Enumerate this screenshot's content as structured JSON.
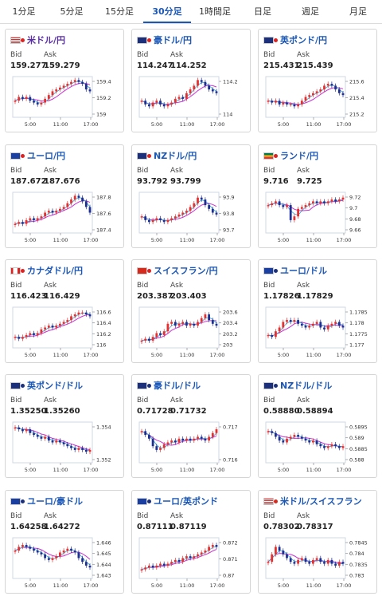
{
  "tabs": [
    "1分足",
    "5分足",
    "15分足",
    "30分足",
    "1時間足",
    "日足",
    "週足",
    "月足"
  ],
  "active_tab": 3,
  "cards": [
    {
      "title": "米ドル/円",
      "bid": "159.277",
      "ask": "159.279",
      "y_ticks": [
        "159.4",
        "159.2",
        "159"
      ],
      "x_ticks": [
        "5:00",
        "11:00",
        "17:00"
      ],
      "flag": "us-jp",
      "title_color": "purple",
      "chart_data": {
        "type": "line",
        "values": [
          4,
          5,
          4.5,
          5,
          4,
          3.5,
          3,
          3.5,
          4.5,
          5.5,
          6.5,
          7,
          7.5,
          8,
          8.5,
          9,
          9.5,
          9,
          8.5,
          7,
          6.5
        ]
      }
    },
    {
      "title": "豪ドル/円",
      "bid": "114.247",
      "ask": "114.252",
      "y_ticks": [
        "114.2",
        "114"
      ],
      "x_ticks": [
        "5:00",
        "11:00",
        "17:00"
      ],
      "flag": "au-jp",
      "chart_data": {
        "type": "line",
        "values": [
          4,
          3,
          2.5,
          3.5,
          4,
          3,
          2.5,
          3,
          3.5,
          4.5,
          5,
          4.5,
          6,
          7,
          8,
          9.5,
          9,
          8,
          7,
          6.5,
          6
        ]
      }
    },
    {
      "title": "英ポンド/円",
      "bid": "215.431",
      "ask": "215.439",
      "y_ticks": [
        "215.6",
        "215.4",
        "215.2"
      ],
      "x_ticks": [
        "5:00",
        "11:00",
        "17:00"
      ],
      "flag": "gb-jp",
      "chart_data": {
        "type": "line",
        "values": [
          4,
          3.5,
          4,
          3,
          3.5,
          3,
          3,
          2.5,
          3,
          4,
          5,
          5.5,
          6,
          6.5,
          7,
          8,
          8.5,
          8,
          7,
          6,
          5.5
        ]
      }
    },
    {
      "title": "ユーロ/円",
      "bid": "187.672",
      "ask": "187.676",
      "y_ticks": [
        "187.8",
        "187.6",
        "187.4"
      ],
      "x_ticks": [
        "5:00",
        "11:00",
        "17:00"
      ],
      "flag": "eu-jp",
      "chart_data": {
        "type": "line",
        "values": [
          2,
          2.5,
          2,
          3,
          3.5,
          3,
          3.5,
          4,
          5,
          5.5,
          5,
          5.5,
          6,
          6.5,
          7.5,
          8.5,
          9.5,
          9,
          8,
          6.5,
          5
        ]
      }
    },
    {
      "title": "NZドル/円",
      "bid": "93.792",
      "ask": "93.799",
      "y_ticks": [
        "93.9",
        "93.8",
        "93.7"
      ],
      "x_ticks": [
        "5:00",
        "11:00",
        "17:00"
      ],
      "flag": "nz-jp",
      "chart_data": {
        "type": "line",
        "values": [
          4,
          3,
          2.5,
          3,
          3.5,
          3,
          2.5,
          3,
          3.5,
          4,
          4.5,
          5,
          5.5,
          6.5,
          7.5,
          9,
          8.5,
          7,
          6,
          5,
          4.5
        ]
      }
    },
    {
      "title": "ランド/円",
      "bid": "9.716",
      "ask": "9.725",
      "y_ticks": [
        "9.72",
        "9.7",
        "9.68",
        "9.66"
      ],
      "x_ticks": [
        "5:00",
        "11:00",
        "17:00"
      ],
      "flag": "za-jp",
      "chart_data": {
        "type": "line",
        "values": [
          7,
          7.5,
          8,
          7,
          6.5,
          7,
          3,
          4,
          6,
          6.5,
          7,
          7.5,
          8,
          7.5,
          8,
          7.5,
          8,
          8.5,
          8,
          8.5,
          9
        ]
      }
    },
    {
      "title": "カナダドル/円",
      "bid": "116.423",
      "ask": "116.429",
      "y_ticks": [
        "116.6",
        "116.4",
        "116.2",
        "116"
      ],
      "x_ticks": [
        "5:00",
        "11:00",
        "17:00"
      ],
      "flag": "ca-jp",
      "chart_data": {
        "type": "line",
        "values": [
          2.5,
          2,
          2.5,
          3,
          3.5,
          3,
          3.5,
          4.5,
          5,
          5.5,
          5,
          5.5,
          6,
          6.5,
          7,
          8,
          8.5,
          9,
          9,
          8.5,
          8
        ]
      }
    },
    {
      "title": "スイスフラン/円",
      "bid": "203.387",
      "ask": "203.403",
      "y_ticks": [
        "203.6",
        "203.4",
        "203.2",
        "203"
      ],
      "x_ticks": [
        "5:00",
        "11:00",
        "17:00"
      ],
      "flag": "ch-jp",
      "chart_data": {
        "type": "line",
        "values": [
          1.5,
          2,
          1.5,
          2.5,
          3.5,
          3,
          4,
          6,
          6.5,
          5.5,
          6,
          6.5,
          5.5,
          6,
          5.5,
          6.5,
          7.5,
          8.5,
          7,
          6,
          5.5
        ]
      }
    },
    {
      "title": "ユーロ/ドル",
      "bid": "1.17826",
      "ask": "1.17829",
      "y_ticks": [
        "1.1785",
        "1.178",
        "1.1775",
        "1.177"
      ],
      "x_ticks": [
        "5:00",
        "11:00",
        "17:00"
      ],
      "flag": "eu-us",
      "chart_data": {
        "type": "line",
        "values": [
          3,
          2.5,
          4,
          5,
          6.5,
          7,
          6.5,
          7,
          6,
          5.5,
          5,
          5.5,
          6,
          6.5,
          5,
          4.5,
          5.5,
          6,
          6.5,
          5.5,
          5
        ]
      }
    },
    {
      "title": "英ポンド/ドル",
      "bid": "1.35250",
      "ask": "1.35260",
      "y_ticks": [
        "1.354",
        "1.352"
      ],
      "x_ticks": [
        "5:00",
        "11:00",
        "17:00"
      ],
      "flag": "gb-us",
      "chart_data": {
        "type": "line",
        "values": [
          9,
          8.5,
          8,
          8.5,
          7.5,
          7,
          6.5,
          6,
          6.5,
          5.5,
          5,
          5.5,
          5,
          4.5,
          4,
          3.5,
          3,
          3.5,
          3,
          2.5,
          3
        ]
      }
    },
    {
      "title": "豪ドル/ドル",
      "bid": "0.71728",
      "ask": "0.71732",
      "y_ticks": [
        "0.717",
        "0.716"
      ],
      "x_ticks": [
        "5:00",
        "11:00",
        "17:00"
      ],
      "flag": "au-us",
      "chart_data": {
        "type": "line",
        "values": [
          8,
          7,
          6,
          4,
          3,
          3.5,
          4.5,
          5,
          5.5,
          5,
          6,
          5.5,
          6,
          5.5,
          6,
          6.5,
          6,
          5.5,
          6.5,
          7.5,
          8.5
        ]
      }
    },
    {
      "title": "NZドル/ドル",
      "bid": "0.58880",
      "ask": "0.58894",
      "y_ticks": [
        "0.5895",
        "0.589",
        "0.5885",
        "0.588"
      ],
      "x_ticks": [
        "5:00",
        "11:00",
        "17:00"
      ],
      "flag": "nz-us",
      "chart_data": {
        "type": "line",
        "values": [
          8,
          7.5,
          6.5,
          5.5,
          5,
          6,
          6.5,
          7,
          6.5,
          6,
          5.5,
          5,
          5.5,
          4.5,
          4,
          3.5,
          4,
          4.5,
          4,
          3.5,
          4
        ]
      }
    },
    {
      "title": "ユーロ/豪ドル",
      "bid": "1.64258",
      "ask": "1.64272",
      "y_ticks": [
        "1.646",
        "1.645",
        "1.644",
        "1.643"
      ],
      "x_ticks": [
        "5:00",
        "11:00",
        "17:00"
      ],
      "flag": "eu-au",
      "chart_data": {
        "type": "line",
        "values": [
          7,
          8,
          8.5,
          8,
          7.5,
          7,
          6.5,
          6,
          5,
          4.5,
          5,
          5.5,
          6.5,
          7,
          7.5,
          7,
          6.5,
          5,
          4,
          3,
          2.5
        ]
      }
    },
    {
      "title": "ユーロ/英ポンド",
      "bid": "0.87111",
      "ask": "0.87119",
      "y_ticks": [
        "0.872",
        "0.871",
        "0.87"
      ],
      "x_ticks": [
        "5:00",
        "11:00",
        "17:00"
      ],
      "flag": "eu-gb",
      "chart_data": {
        "type": "line",
        "values": [
          2,
          2.5,
          3,
          2.5,
          3,
          3.5,
          3,
          3.5,
          4,
          4.5,
          4,
          5,
          5.5,
          5,
          5.5,
          6,
          6.5,
          7,
          8,
          8.5,
          8
        ]
      }
    },
    {
      "title": "米ドル/スイスフラン",
      "bid": "0.78302",
      "ask": "0.78317",
      "y_ticks": [
        "0.7845",
        "0.784",
        "0.7835",
        "0.783"
      ],
      "x_ticks": [
        "5:00",
        "11:00",
        "17:00"
      ],
      "flag": "us-ch",
      "chart_data": {
        "type": "line",
        "values": [
          4,
          6,
          8,
          7,
          6,
          5,
          4,
          3.5,
          4.5,
          5,
          4,
          3.5,
          4.5,
          5,
          4,
          3.5,
          4.5,
          3.5,
          3,
          4,
          3.5
        ]
      }
    }
  ],
  "labels": {
    "bid": "Bid",
    "ask": "Ask"
  },
  "colors": {
    "tab_active": "#1a57b7",
    "title": "#1a57b7",
    "title_purple": "#5a2ea6",
    "up": "#e53030",
    "down": "#1f2f8f",
    "ma1": "#c832d4",
    "ma2": "#29a4d4",
    "grid": "#cfd8e6"
  }
}
